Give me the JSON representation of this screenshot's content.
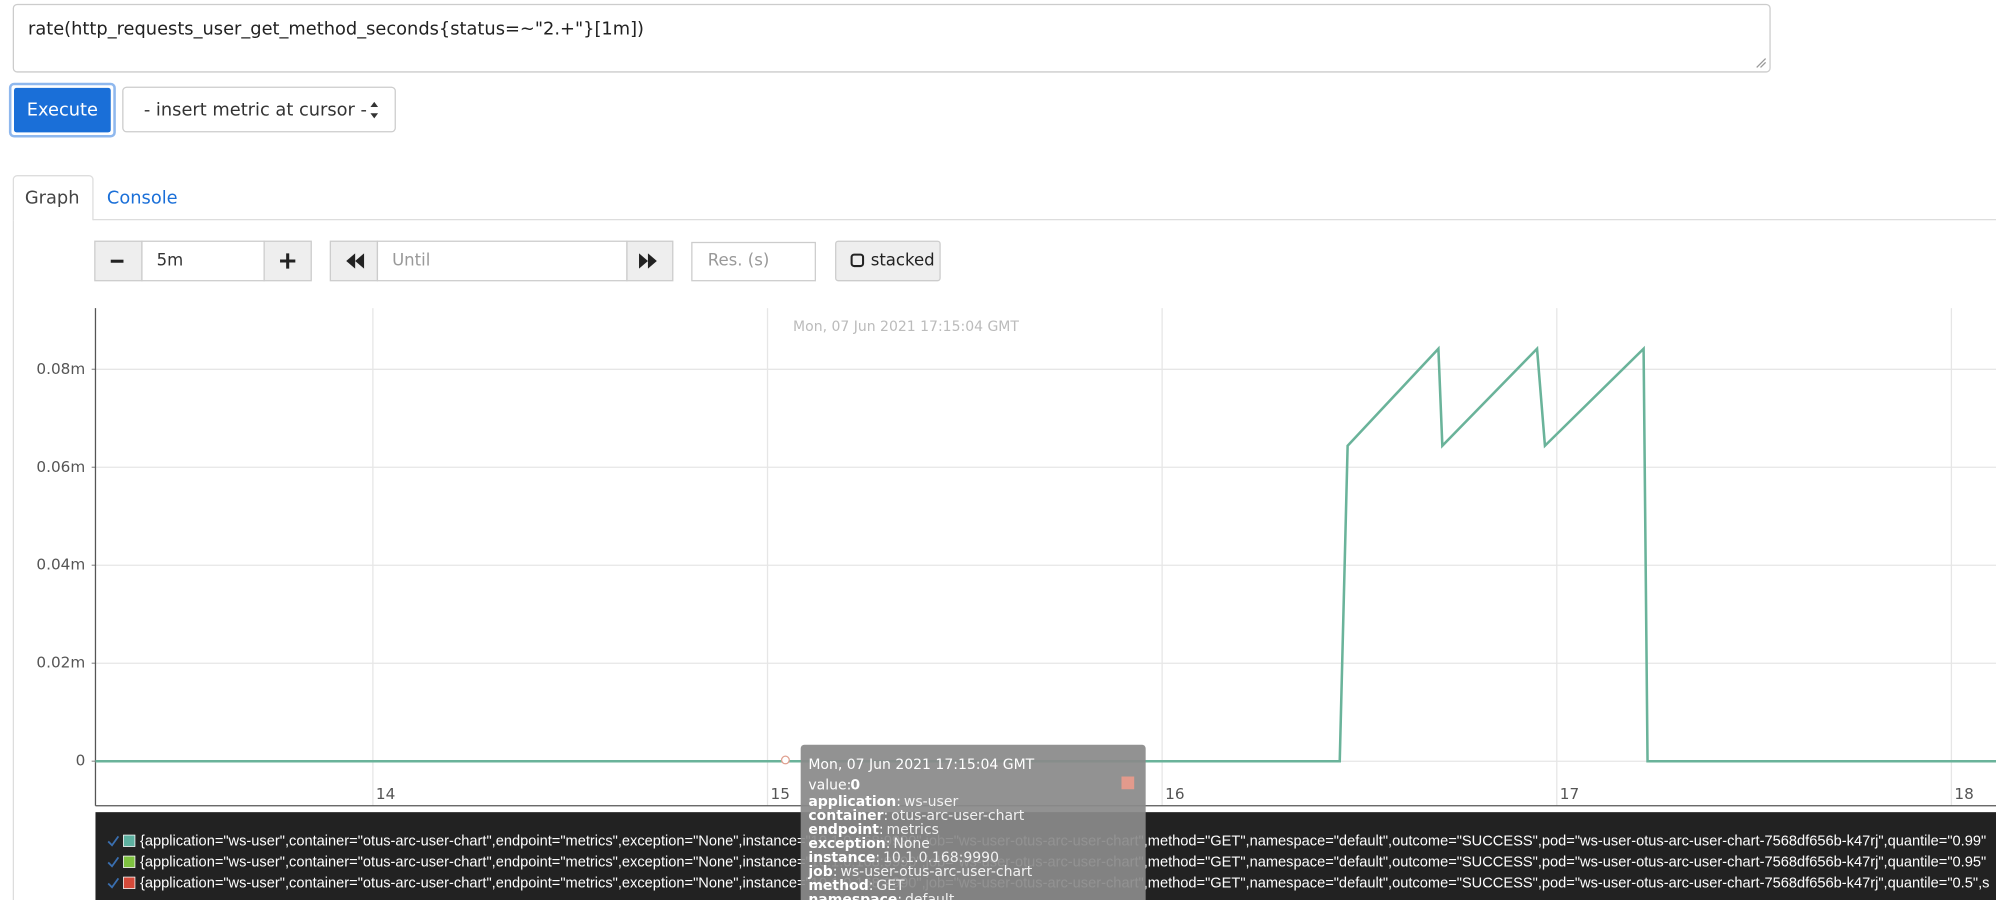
{
  "query": "rate(http_requests_user_get_method_seconds{status=~\"2.+\"}[1m])",
  "execute": "Execute",
  "metric_select": "- insert metric at cursor -",
  "tabs": [
    "Graph",
    "Console"
  ],
  "controls": {
    "range": "5m",
    "until_placeholder": "Until",
    "res_placeholder": "Res. (s)",
    "stacked": "stacked"
  },
  "chart_data": {
    "type": "line",
    "xlim": [
      13.297,
      18.113
    ],
    "xticks": [
      14,
      15,
      16,
      17,
      18
    ],
    "ylim": [
      -9.1e-06,
      9.25e-05
    ],
    "yticks": [
      {
        "value": 0,
        "label": "0"
      },
      {
        "value": 2e-05,
        "label": "0.02m"
      },
      {
        "value": 4e-05,
        "label": "0.04m"
      },
      {
        "value": 6e-05,
        "label": "0.06m"
      },
      {
        "value": 8e-05,
        "label": "0.08m"
      }
    ],
    "grid": true,
    "series": [
      {
        "color": "#6ab39a",
        "x": [
          13.297,
          16.45,
          16.47,
          16.7,
          16.71,
          16.95,
          16.97,
          17.22,
          17.23,
          18.113
        ],
        "values": [
          0,
          0,
          6.44e-05,
          8.42e-05,
          6.44e-05,
          8.42e-05,
          6.44e-05,
          8.42e-05,
          0,
          0
        ]
      }
    ],
    "legend_entries": [
      {
        "label": "{application=\"ws-user\",container=\"otus-arc-user-chart\",endpoint=\"metrics\",exception=\"None\",instance=\"10.1.0.168:9990\",job=\"ws-user-otus-arc-user-chart\",method=\"GET\",namespace=\"default\",outcome=\"SUCCESS\",pod=\"ws-user-otus-arc-user-chart-7568df656b-k47rj\",quantile=\"0.99\"",
        "color": "#5db0a0"
      },
      {
        "label": "{application=\"ws-user\",container=\"otus-arc-user-chart\",endpoint=\"metrics\",exception=\"None\",instance=\"10.1.0.168:9990\",job=\"ws-user-otus-arc-user-chart\",method=\"GET\",namespace=\"default\",outcome=\"SUCCESS\",pod=\"ws-user-otus-arc-user-chart-7568df656b-k47rj\",quantile=\"0.95\"",
        "color": "#7fc241"
      },
      {
        "label": "{application=\"ws-user\",container=\"otus-arc-user-chart\",endpoint=\"metrics\",exception=\"None\",instance=\"10.1.0.168:9990\",job=\"ws-user-otus-arc-user-chart\",method=\"GET\",namespace=\"default\",outcome=\"SUCCESS\",pod=\"ws-user-otus-arc-user-chart-7568df656b-k47rj\",quantile=\"0.5\",s",
        "color": "#d44a3a"
      }
    ]
  },
  "tooltip": {
    "time": "Mon, 07 Jun 2021 17:15:04 GMT",
    "value_key": "value:",
    "value": 0,
    "labels": [
      [
        "application",
        "ws-user"
      ],
      [
        "container",
        "otus-arc-user-chart"
      ],
      [
        "endpoint",
        "metrics"
      ],
      [
        "exception",
        "None"
      ],
      [
        "instance",
        "10.1.0.168:9990"
      ],
      [
        "job",
        "ws-user-otus-arc-user-chart"
      ],
      [
        "method",
        "GET"
      ],
      [
        "namespace",
        "default"
      ]
    ]
  }
}
